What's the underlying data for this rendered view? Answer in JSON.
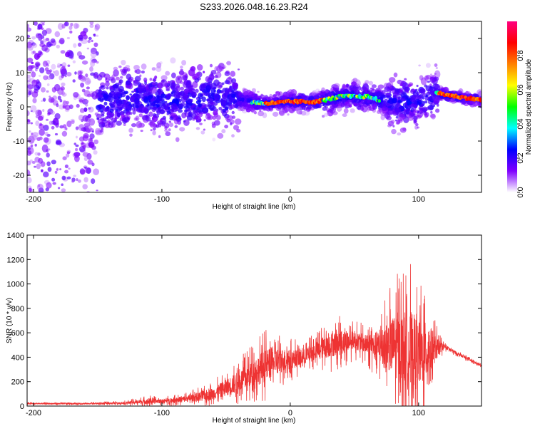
{
  "figure": {
    "title": "S233.2026.048.16.23.R24"
  },
  "chart_data": [
    {
      "type": "heatmap",
      "xlabel": "Height of straight line (km)",
      "ylabel": "Frequency (Hz)",
      "xlim": [
        -205,
        149
      ],
      "ylim": [
        -25,
        25
      ],
      "xticks": [
        -200,
        -100,
        0,
        100
      ],
      "yticks": [
        -20,
        -10,
        0,
        10,
        20
      ],
      "grid": false,
      "colorbar": {
        "label": "Normalized spectral amplitude",
        "range": [
          0,
          1
        ],
        "ticks": [
          "0.0",
          "0.2",
          "0.4",
          "0.6",
          "0.8"
        ],
        "colors": [
          "#ffffff",
          "#8000ff",
          "#0000ff",
          "#00ffff",
          "#00ff00",
          "#ffff00",
          "#ff8000",
          "#ff0000",
          "#ff0080"
        ]
      },
      "ridge": {
        "x": [
          -150,
          -120,
          -100,
          -80,
          -60,
          -40,
          -20,
          0,
          20,
          40,
          60,
          80,
          100,
          115,
          130,
          149
        ],
        "center_hz": [
          1,
          3,
          1,
          2,
          3,
          2,
          1,
          1.5,
          1.5,
          3,
          3,
          1,
          2,
          4,
          3,
          2
        ]
      }
    },
    {
      "type": "line",
      "xlabel": "Height of straight line (km)",
      "ylabel": "SNR (10 * v/v)",
      "xlim": [
        -205,
        149
      ],
      "ylim": [
        0,
        1400
      ],
      "xticks": [
        -200,
        -100,
        0,
        100
      ],
      "yticks": [
        0,
        200,
        400,
        600,
        800,
        1000,
        1200,
        1400
      ],
      "grid": false,
      "series": [
        {
          "color": "#ee3333",
          "envelope": {
            "x": [
              -205,
              -160,
              -130,
              -110,
              -100,
              -80,
              -60,
              -40,
              -20,
              -10,
              0,
              10,
              20,
              30,
              40,
              50,
              60,
              70,
              80,
              85,
              90,
              95,
              100,
              105,
              110,
              115,
              120,
              130,
              149
            ],
            "base": [
              20,
              20,
              25,
              40,
              40,
              60,
              100,
              200,
              330,
              370,
              380,
              400,
              450,
              500,
              520,
              540,
              500,
              480,
              500,
              480,
              460,
              440,
              420,
              440,
              460,
              480,
              490,
              430,
              330
            ],
            "amp": [
              12,
              12,
              18,
              50,
              35,
              60,
              110,
              190,
              300,
              240,
              180,
              140,
              160,
              230,
              220,
              160,
              180,
              320,
              520,
              650,
              700,
              750,
              600,
              550,
              380,
              150,
              40,
              25,
              18
            ]
          }
        }
      ]
    }
  ]
}
